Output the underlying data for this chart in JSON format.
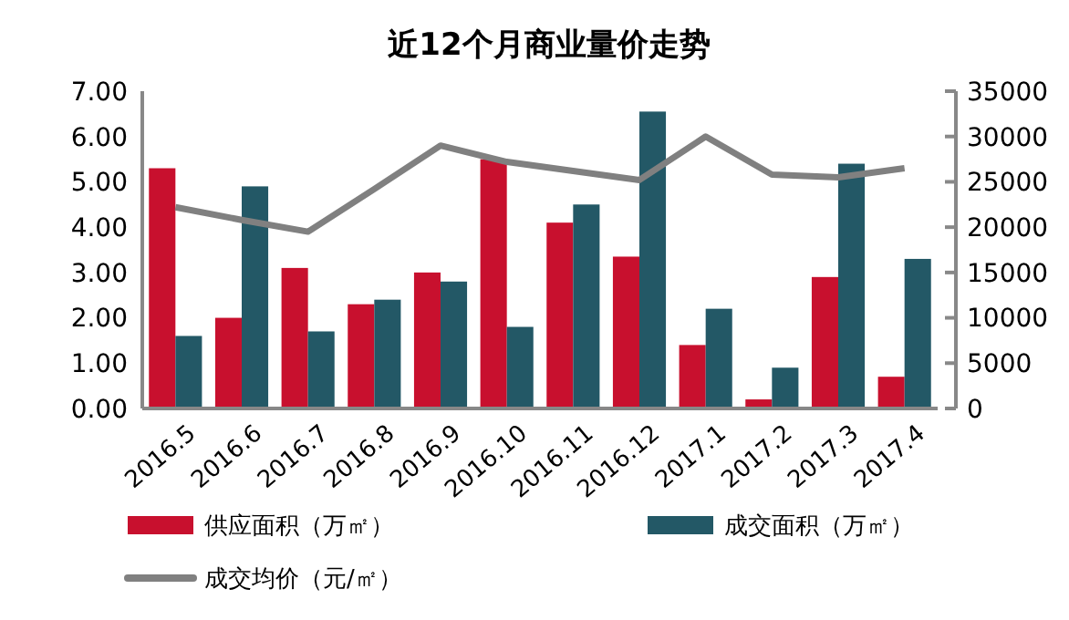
{
  "chart_data": {
    "type": "bar",
    "title": "近12个月商业量价走势",
    "categories": [
      "2016.5",
      "2016.6",
      "2016.7",
      "2016.8",
      "2016.9",
      "2016.10",
      "2016.11",
      "2016.12",
      "2017.1",
      "2017.2",
      "2017.3",
      "2017.4"
    ],
    "series": [
      {
        "name": "供应面积（万㎡）",
        "color": "#c8102e",
        "values": [
          5.3,
          2.0,
          3.1,
          2.3,
          3.0,
          5.5,
          4.1,
          3.35,
          1.4,
          0.2,
          2.9,
          0.7
        ]
      },
      {
        "name": "成交面积（万㎡）",
        "color": "#235866",
        "values": [
          1.6,
          4.9,
          1.7,
          2.4,
          2.8,
          1.8,
          4.5,
          6.55,
          2.2,
          0.9,
          5.4,
          3.3
        ]
      },
      {
        "name": "成交均价（元/㎡）",
        "type": "line",
        "axis": "y2",
        "color": "#808080",
        "values": [
          22200,
          20800,
          19500,
          24200,
          29000,
          27200,
          26200,
          25200,
          30000,
          25800,
          25500,
          26500
        ]
      }
    ],
    "ylim": [
      0,
      7
    ],
    "yticks": [
      {
        "value": 0,
        "label": "0.00"
      },
      {
        "value": 1,
        "label": "1.00"
      },
      {
        "value": 2,
        "label": "2.00"
      },
      {
        "value": 3,
        "label": "3.00"
      },
      {
        "value": 4,
        "label": "4.00"
      },
      {
        "value": 5,
        "label": "5.00"
      },
      {
        "value": 6,
        "label": "6.00"
      },
      {
        "value": 7,
        "label": "7.00"
      }
    ],
    "y2lim": [
      0,
      35000
    ],
    "y2ticks": [
      0,
      5000,
      10000,
      15000,
      20000,
      25000,
      30000,
      35000
    ],
    "legend": "bottom",
    "grid": false
  }
}
